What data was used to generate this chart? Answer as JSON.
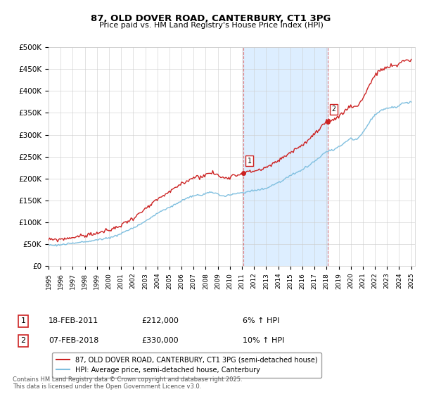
{
  "title_line1": "87, OLD DOVER ROAD, CANTERBURY, CT1 3PG",
  "title_line2": "Price paid vs. HM Land Registry's House Price Index (HPI)",
  "ylim": [
    0,
    500000
  ],
  "yticks": [
    0,
    50000,
    100000,
    150000,
    200000,
    250000,
    300000,
    350000,
    400000,
    450000,
    500000
  ],
  "ytick_labels": [
    "£0",
    "£50K",
    "£100K",
    "£150K",
    "£200K",
    "£250K",
    "£300K",
    "£350K",
    "£400K",
    "£450K",
    "£500K"
  ],
  "year_start": 1995,
  "year_end": 2025,
  "sale1_date": "18-FEB-2011",
  "sale1_price": 212000,
  "sale1_hpi_pct": "6%",
  "sale2_date": "07-FEB-2018",
  "sale2_price": 330000,
  "sale2_hpi_pct": "10%",
  "sale1_year": 2011.12,
  "sale2_year": 2018.1,
  "hpi_color": "#7fbfdf",
  "price_color": "#cc2222",
  "hpi_fill_color": "#ddeeff",
  "legend_label1": "87, OLD DOVER ROAD, CANTERBURY, CT1 3PG (semi-detached house)",
  "legend_label2": "HPI: Average price, semi-detached house, Canterbury",
  "footnote": "Contains HM Land Registry data © Crown copyright and database right 2025.\nThis data is licensed under the Open Government Licence v3.0.",
  "background_color": "#ffffff",
  "grid_color": "#cccccc"
}
